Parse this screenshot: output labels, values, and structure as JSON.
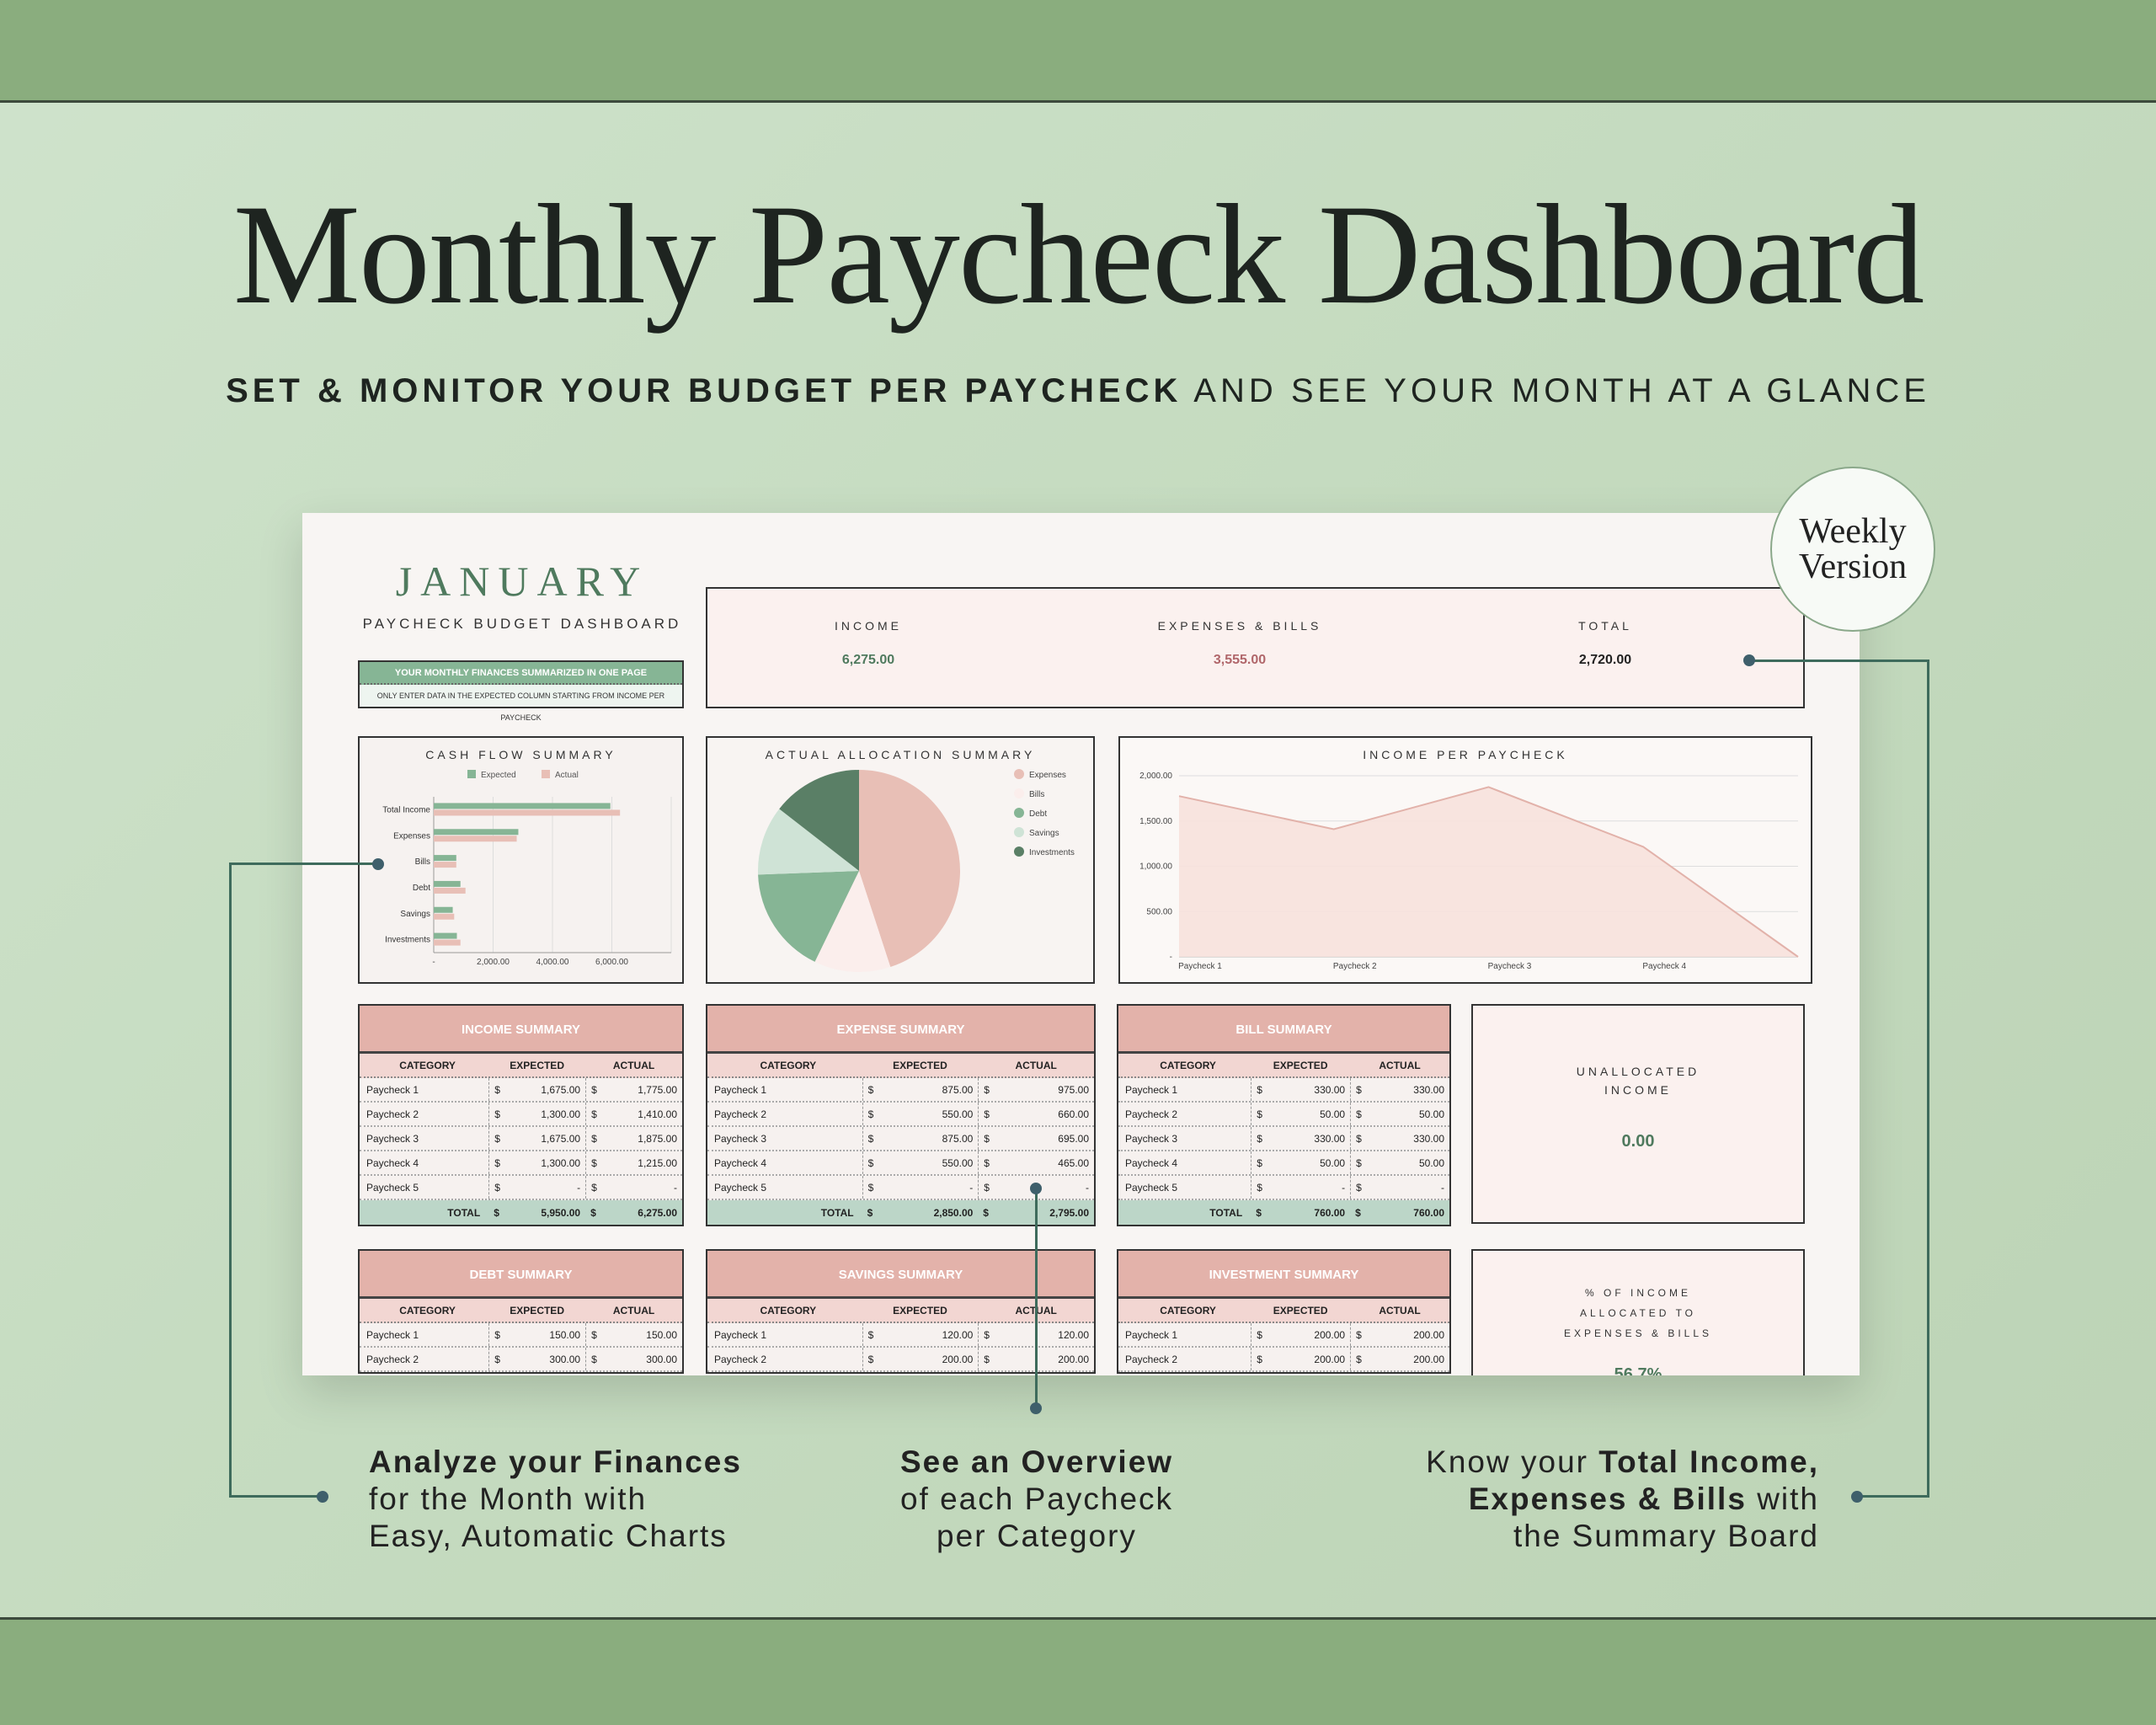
{
  "title": "Monthly Paycheck Dashboard",
  "subtitle_bold": "SET & MONITOR YOUR BUDGET PER PAYCHECK",
  "subtitle_rest": "AND SEE YOUR MONTH AT A GLANCE",
  "badge": {
    "line1": "Weekly",
    "line2": "Version"
  },
  "dashboard": {
    "month": "JANUARY",
    "subtitle": "PAYCHECK BUDGET DASHBOARD",
    "banner": "YOUR MONTHLY FINANCES SUMMARIZED IN ONE PAGE",
    "note": "ONLY ENTER DATA IN THE EXPECTED COLUMN STARTING FROM INCOME PER PAYCHECK",
    "summary": {
      "income_label": "INCOME",
      "income": "6,275.00",
      "expenses_label": "EXPENSES & BILLS",
      "expenses": "3,555.00",
      "total_label": "TOTAL",
      "total": "2,720.00"
    },
    "unallocated": {
      "label1": "UNALLOCATED",
      "label2": "INCOME",
      "value": "0.00"
    },
    "percent": {
      "label1": "% OF INCOME",
      "label2": "ALLOCATED TO",
      "label3": "EXPENSES & BILLS",
      "value": "56.7%"
    },
    "tables": [
      {
        "title": "INCOME SUMMARY",
        "columns": [
          "CATEGORY",
          "EXPECTED",
          "ACTUAL"
        ],
        "rows": [
          [
            "Paycheck 1",
            "1,675.00",
            "1,775.00"
          ],
          [
            "Paycheck 2",
            "1,300.00",
            "1,410.00"
          ],
          [
            "Paycheck 3",
            "1,675.00",
            "1,875.00"
          ],
          [
            "Paycheck 4",
            "1,300.00",
            "1,215.00"
          ],
          [
            "Paycheck 5",
            "-",
            "-"
          ]
        ],
        "total": [
          "TOTAL",
          "5,950.00",
          "6,275.00"
        ]
      },
      {
        "title": "EXPENSE SUMMARY",
        "columns": [
          "CATEGORY",
          "EXPECTED",
          "ACTUAL"
        ],
        "rows": [
          [
            "Paycheck 1",
            "875.00",
            "975.00"
          ],
          [
            "Paycheck 2",
            "550.00",
            "660.00"
          ],
          [
            "Paycheck 3",
            "875.00",
            "695.00"
          ],
          [
            "Paycheck 4",
            "550.00",
            "465.00"
          ],
          [
            "Paycheck 5",
            "-",
            "-"
          ]
        ],
        "total": [
          "TOTAL",
          "2,850.00",
          "2,795.00"
        ]
      },
      {
        "title": "BILL SUMMARY",
        "columns": [
          "CATEGORY",
          "EXPECTED",
          "ACTUAL"
        ],
        "rows": [
          [
            "Paycheck 1",
            "330.00",
            "330.00"
          ],
          [
            "Paycheck 2",
            "50.00",
            "50.00"
          ],
          [
            "Paycheck 3",
            "330.00",
            "330.00"
          ],
          [
            "Paycheck 4",
            "50.00",
            "50.00"
          ],
          [
            "Paycheck 5",
            "-",
            "-"
          ]
        ],
        "total": [
          "TOTAL",
          "760.00",
          "760.00"
        ]
      },
      {
        "title": "DEBT SUMMARY",
        "columns": [
          "CATEGORY",
          "EXPECTED",
          "ACTUAL"
        ],
        "rows": [
          [
            "Paycheck 1",
            "150.00",
            "150.00"
          ],
          [
            "Paycheck 2",
            "300.00",
            "300.00"
          ]
        ]
      },
      {
        "title": "SAVINGS SUMMARY",
        "columns": [
          "CATEGORY",
          "EXPECTED",
          "ACTUAL"
        ],
        "rows": [
          [
            "Paycheck 1",
            "120.00",
            "120.00"
          ],
          [
            "Paycheck 2",
            "200.00",
            "200.00"
          ]
        ]
      },
      {
        "title": "INVESTMENT SUMMARY",
        "columns": [
          "CATEGORY",
          "EXPECTED",
          "ACTUAL"
        ],
        "rows": [
          [
            "Paycheck 1",
            "200.00",
            "200.00"
          ],
          [
            "Paycheck 2",
            "200.00",
            "200.00"
          ]
        ]
      }
    ],
    "currency": "$"
  },
  "captions": {
    "left": {
      "bold": "Analyze your Finances",
      "line2": "for the Month with",
      "line3": "Easy, Automatic Charts"
    },
    "center": {
      "bold": "See an Overview",
      "line2": "of each Paycheck",
      "line3": "per Category"
    },
    "right": {
      "pre": "Know your",
      "bold1": "Total Income,",
      "bold2": "Expenses & Bills",
      "post": "with",
      "line3": "the Summary Board"
    }
  },
  "colors": {
    "green": "#86b595",
    "dark_green": "#5a7f66",
    "light_green": "#cfe3d6",
    "pink": "#e8bfb6",
    "light_pink": "#fbeeec"
  },
  "chart_data": [
    {
      "type": "bar",
      "title": "CASH FLOW SUMMARY",
      "orientation": "horizontal",
      "categories": [
        "Total Income",
        "Expenses",
        "Bills",
        "Debt",
        "Savings",
        "Investments"
      ],
      "series": [
        {
          "name": "Expected",
          "values": [
            5950,
            2850,
            760,
            900,
            640,
            780
          ]
        },
        {
          "name": "Actual",
          "values": [
            6275,
            2795,
            760,
            1070,
            690,
            900
          ]
        }
      ],
      "xticks": [
        "-",
        "2,000.00",
        "4,000.00",
        "6,000.00"
      ],
      "xlim": [
        0,
        8000
      ],
      "legend": "top",
      "grid": true
    },
    {
      "type": "pie",
      "title": "ACTUAL ALLOCATION SUMMARY",
      "labels": [
        "Expenses",
        "Bills",
        "Debt",
        "Savings",
        "Investments"
      ],
      "values": [
        2795,
        760,
        1070,
        690,
        900
      ],
      "legend": "right"
    },
    {
      "type": "area",
      "title": "INCOME PER PAYCHECK",
      "categories": [
        "Paycheck 1",
        "Paycheck 2",
        "Paycheck 3",
        "Paycheck 4",
        ""
      ],
      "values": [
        1775,
        1410,
        1875,
        1215,
        0
      ],
      "yticks": [
        "-",
        "500.00",
        "1,000.00",
        "1,500.00",
        "2,000.00"
      ],
      "ylim": [
        0,
        2000
      ],
      "grid": true
    }
  ]
}
